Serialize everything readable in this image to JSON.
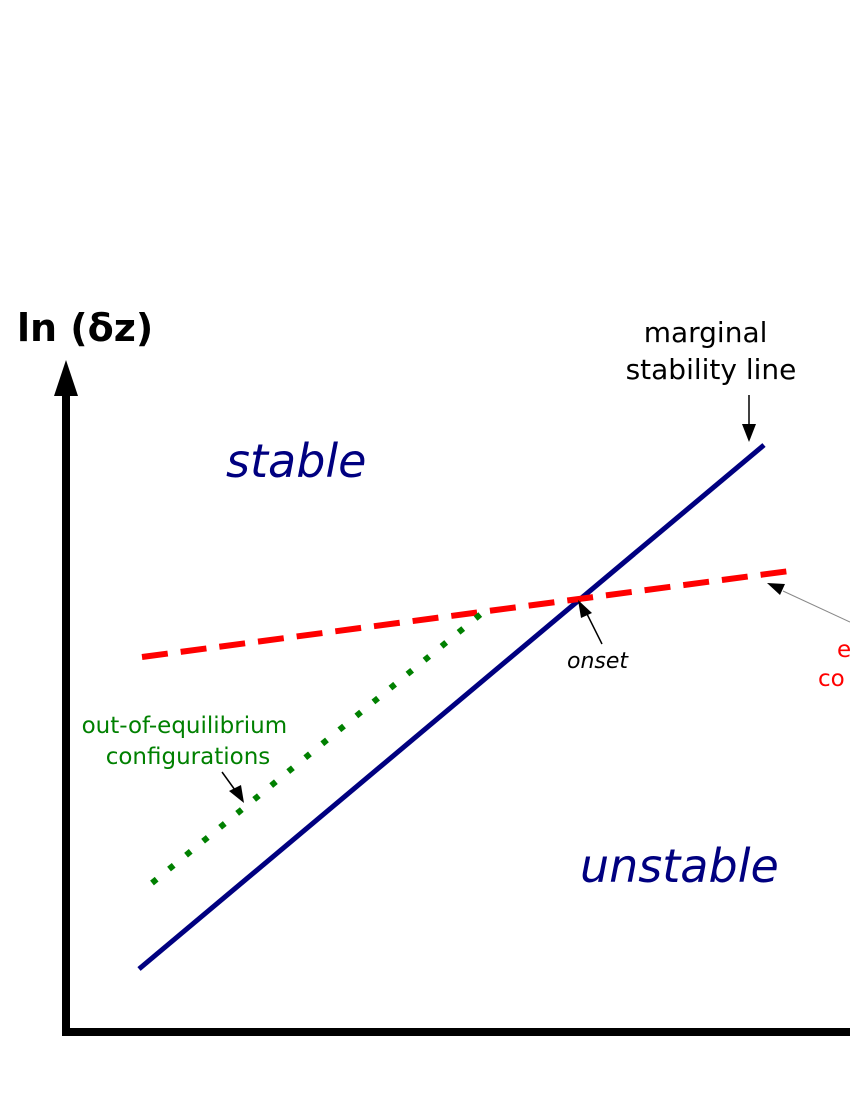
{
  "diagram": {
    "y_axis_label": "ln (δz)",
    "regions": {
      "stable": "stable",
      "unstable": "unstable"
    },
    "annotations": {
      "marginal_line": [
        "marginal",
        "stability line"
      ],
      "onset": "onset",
      "out_of_equilibrium": [
        "out-of-equilibrium",
        "configurations"
      ],
      "equilibrium_partial": [
        "e",
        "co"
      ]
    },
    "colors": {
      "axis": "#000000",
      "marginal_line": "#000080",
      "equilibrium_line": "#ff0000",
      "out_of_equilibrium_line": "#008000",
      "region_text": "#000080",
      "pointer": "#000000",
      "pointer_light": "#888888"
    }
  }
}
